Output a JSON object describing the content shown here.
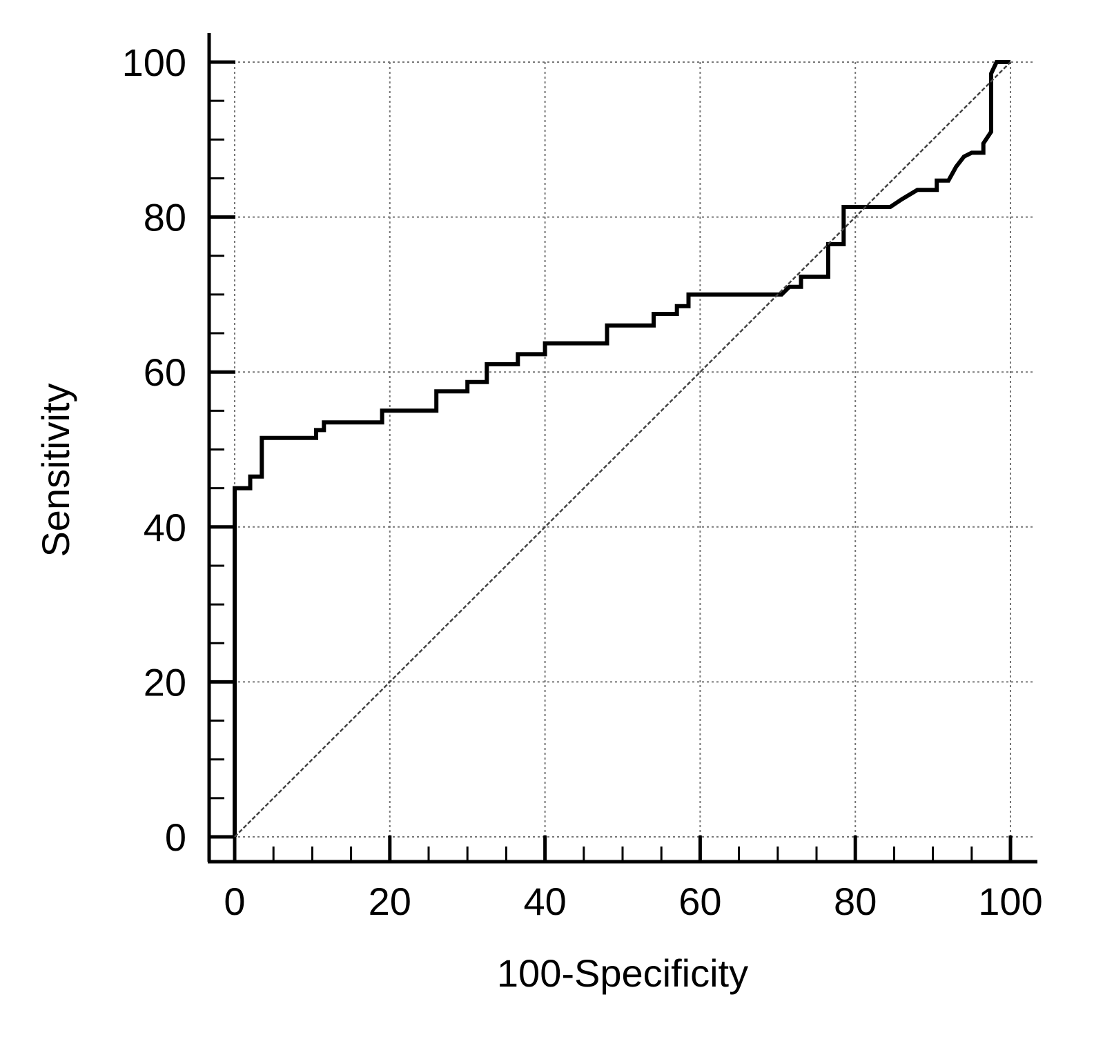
{
  "chart_data": {
    "type": "line",
    "title": "",
    "xlabel": "100-Specificity",
    "ylabel": "Sensitivity",
    "xlim": [
      0,
      100
    ],
    "ylim": [
      0,
      100
    ],
    "x_ticks": [
      "0",
      "20",
      "40",
      "60",
      "80",
      "100"
    ],
    "y_ticks": [
      "0",
      "20",
      "40",
      "60",
      "80",
      "100"
    ],
    "grid": true,
    "legend": "none",
    "series": [
      {
        "points": [
          [
            0,
            0
          ],
          [
            0,
            45
          ],
          [
            2,
            45
          ],
          [
            2,
            46.5
          ],
          [
            3.5,
            46.5
          ],
          [
            3.5,
            51.5
          ],
          [
            10.5,
            51.5
          ],
          [
            10.5,
            52.5
          ],
          [
            11.5,
            52.5
          ],
          [
            11.5,
            53.5
          ],
          [
            19,
            53.5
          ],
          [
            19,
            55
          ],
          [
            26,
            55
          ],
          [
            26,
            57.5
          ],
          [
            30,
            57.5
          ],
          [
            30,
            58.7
          ],
          [
            32.5,
            58.7
          ],
          [
            32.5,
            61
          ],
          [
            36.5,
            61
          ],
          [
            36.5,
            62.3
          ],
          [
            40,
            62.3
          ],
          [
            40,
            63.7
          ],
          [
            48,
            63.7
          ],
          [
            48,
            66
          ],
          [
            54,
            66
          ],
          [
            54,
            67.5
          ],
          [
            57,
            67.5
          ],
          [
            57,
            68.5
          ],
          [
            58.5,
            68.5
          ],
          [
            58.5,
            70
          ],
          [
            70.5,
            70
          ],
          [
            71.5,
            71
          ],
          [
            73,
            71
          ],
          [
            73,
            72.3
          ],
          [
            76.5,
            72.3
          ],
          [
            76.5,
            76.5
          ],
          [
            78.5,
            76.5
          ],
          [
            78.5,
            81.3
          ],
          [
            84.5,
            81.3
          ],
          [
            86,
            82.3
          ],
          [
            88,
            83.5
          ],
          [
            90.5,
            83.5
          ],
          [
            90.5,
            84.7
          ],
          [
            92,
            84.7
          ],
          [
            93,
            86.5
          ],
          [
            94,
            87.8
          ],
          [
            95,
            88.3
          ],
          [
            96.5,
            88.3
          ],
          [
            96.5,
            89.5
          ],
          [
            97.5,
            91
          ],
          [
            97.5,
            98.5
          ],
          [
            98.2,
            100
          ],
          [
            100,
            100
          ]
        ]
      },
      {
        "style": "reference",
        "points": [
          [
            0,
            0
          ],
          [
            100,
            100
          ]
        ]
      }
    ]
  }
}
